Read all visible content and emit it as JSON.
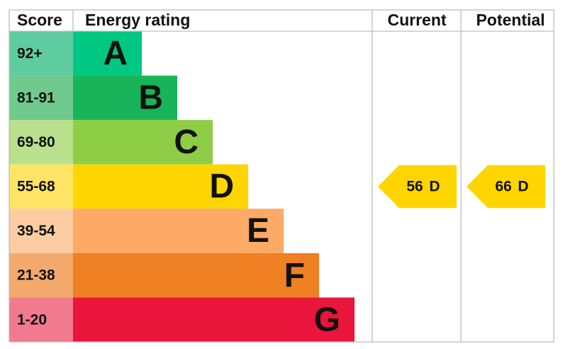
{
  "headers": {
    "score": "Score",
    "rating": "Energy rating",
    "current": "Current",
    "potential": "Potential"
  },
  "bands": [
    {
      "score": "92+",
      "letter": "A",
      "color": "#00c781",
      "score_color": "#5fcca0"
    },
    {
      "score": "81-91",
      "letter": "B",
      "color": "#19b459",
      "score_color": "#70c98d"
    },
    {
      "score": "69-80",
      "letter": "C",
      "color": "#8dce46",
      "score_color": "#b9e08d"
    },
    {
      "score": "55-68",
      "letter": "D",
      "color": "#ffd500",
      "score_color": "#ffe466"
    },
    {
      "score": "39-54",
      "letter": "E",
      "color": "#fcaa65",
      "score_color": "#fdcca2"
    },
    {
      "score": "21-38",
      "letter": "F",
      "color": "#ef8023",
      "score_color": "#f4a96d"
    },
    {
      "score": "1-20",
      "letter": "G",
      "color": "#e9153b",
      "score_color": "#f07a8e"
    }
  ],
  "current": {
    "score": 56,
    "band": "D"
  },
  "potential": {
    "score": 66,
    "band": "D"
  }
}
